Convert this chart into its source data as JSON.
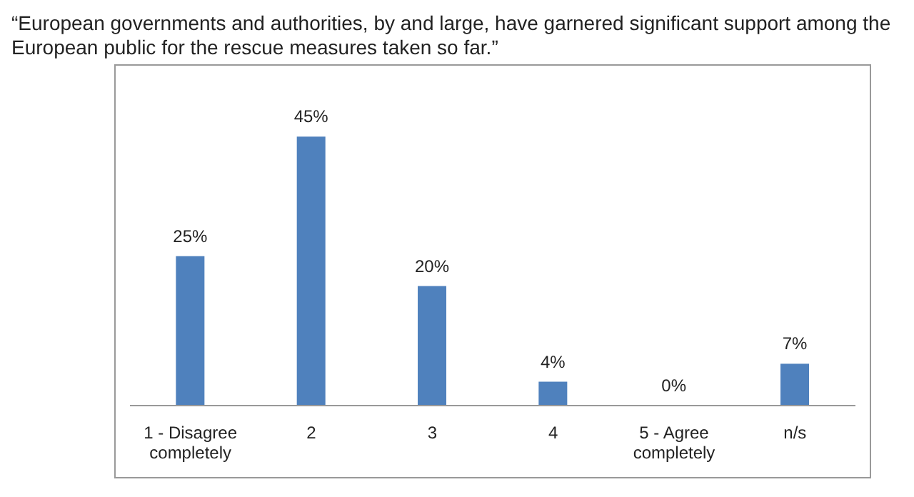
{
  "chart_data": {
    "type": "bar",
    "title": "“European governments and authorities, by and large, have garnered significant support among the European public for the rescue measures taken so far.”",
    "categories": [
      "1 - Disagree completely",
      "2",
      "3",
      "4",
      "5 - Agree completely",
      "n/s"
    ],
    "values": [
      25,
      45,
      20,
      4,
      0,
      7
    ],
    "value_labels": [
      "25%",
      "45%",
      "20%",
      "4%",
      "0%",
      "7%"
    ],
    "color": "#4f81bd"
  }
}
